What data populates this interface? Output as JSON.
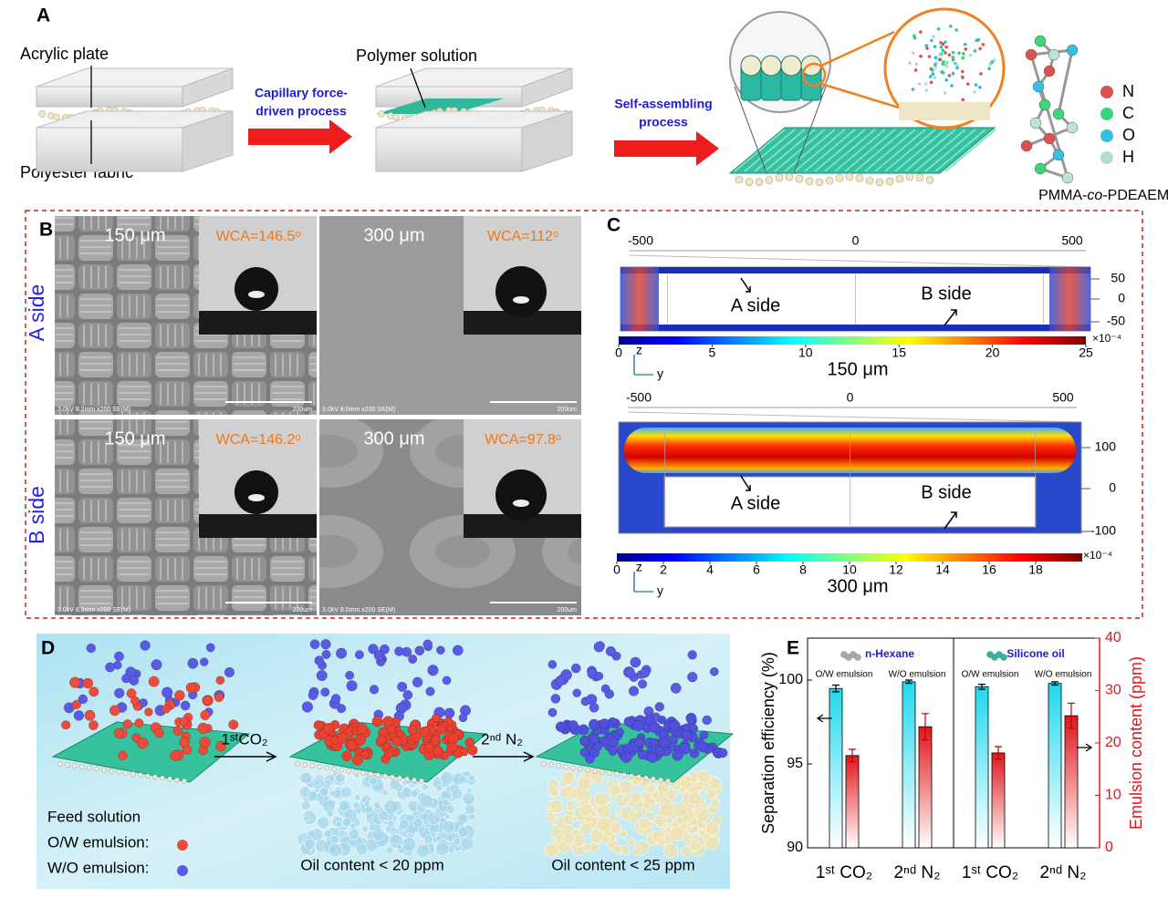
{
  "panels": {
    "A": {
      "label": "A",
      "acrylic_plate": "Acrylic plate",
      "polyester_fabric": "Polyester fabric",
      "arrow1": [
        "Capillary force-",
        "driven process"
      ],
      "polymer_solution": "Polymer solution",
      "arrow2": [
        "Self-assembling",
        "process"
      ],
      "elements": [
        "N",
        "C",
        "O",
        "H"
      ],
      "polymer": [
        "PMMA-",
        "co",
        "-PDEAEMA"
      ]
    },
    "B": {
      "label": "B",
      "rows": [
        "A side",
        "B side"
      ],
      "images": [
        {
          "thickness": "150 μm",
          "wca": "WCA=146.5ᵒ"
        },
        {
          "thickness": "300 μm",
          "wca": "WCA=112ᵒ"
        },
        {
          "thickness": "150 μm",
          "wca": "WCA=146.2ᵒ"
        },
        {
          "thickness": "300 μm",
          "wca": "WCA=97.8ᵒ"
        }
      ],
      "sem_footers": [
        "3.0kV 8.2mm x200 SE(M)",
        "3.0kV 8.0mm x200 SE(M)",
        "3.0kV 8.2mm x200 SE(M)",
        "3.0kV 8.0mm x200 SE(M)"
      ],
      "scale": [
        "200um",
        "200um",
        "200um",
        "200um"
      ]
    },
    "C": {
      "label": "C",
      "plots": [
        {
          "y_top": [
            -500,
            0,
            500
          ],
          "z_right": [
            50,
            0,
            -50
          ],
          "clim": [
            0,
            25
          ],
          "cticks": [
            0,
            5,
            10,
            15,
            20,
            25
          ],
          "cunit": "×10⁻⁴",
          "axes": [
            "z",
            "y"
          ],
          "title": "150 μm",
          "labels": [
            "A side",
            "B side"
          ]
        },
        {
          "y_top": [
            -500,
            0,
            500
          ],
          "z_right": [
            100,
            0,
            -100
          ],
          "clim": [
            0,
            20
          ],
          "cticks": [
            0,
            2,
            4,
            6,
            8,
            10,
            12,
            14,
            16,
            18
          ],
          "cunit": "×10⁻⁴",
          "axes": [
            "z",
            "y"
          ],
          "title": "300 μm",
          "labels": [
            "A side",
            "B side"
          ]
        }
      ]
    },
    "D": {
      "label": "D",
      "step1": "1ˢᵗCO₂",
      "step2": "2ⁿᵈ N₂",
      "feed": "Feed solution",
      "ow": "O/W emulsion:",
      "wo": "W/O emulsion:",
      "result1": "Oil content < 20 ppm",
      "result2": "Oil content < 25 ppm"
    }
  },
  "chart_data": {
    "type": "bar",
    "panel_label": "E",
    "categories": [
      "1ˢᵗ CO₂",
      "2ⁿᵈ N₂",
      "1ˢᵗ CO₂",
      "2ⁿᵈ N₂"
    ],
    "group_labels": [
      "n-Hexane",
      "Silicone oil"
    ],
    "bar_labels": [
      "O/W emulsion",
      "W/O emulsion",
      "O/W emulsion",
      "W/O emulsion"
    ],
    "ylabel": "Separation efficiency (%)",
    "y2label": "Emulsion content (ppm)",
    "ylim": [
      90,
      102.5
    ],
    "yticks": [
      90,
      95,
      100
    ],
    "y2lim": [
      0,
      40
    ],
    "y2ticks": [
      0,
      10,
      20,
      30,
      40
    ],
    "series": [
      {
        "color": "#22d8ee",
        "values": [
          99.5,
          99.9,
          99.6,
          99.8
        ],
        "errors": [
          0.2,
          0.1,
          0.15,
          0.1
        ]
      },
      {
        "color": "#e0161b",
        "axis": "y2",
        "values": [
          17.6,
          23.1,
          18.1,
          25.2
        ],
        "errors": [
          1.2,
          2.5,
          1.2,
          2.4
        ]
      }
    ]
  }
}
